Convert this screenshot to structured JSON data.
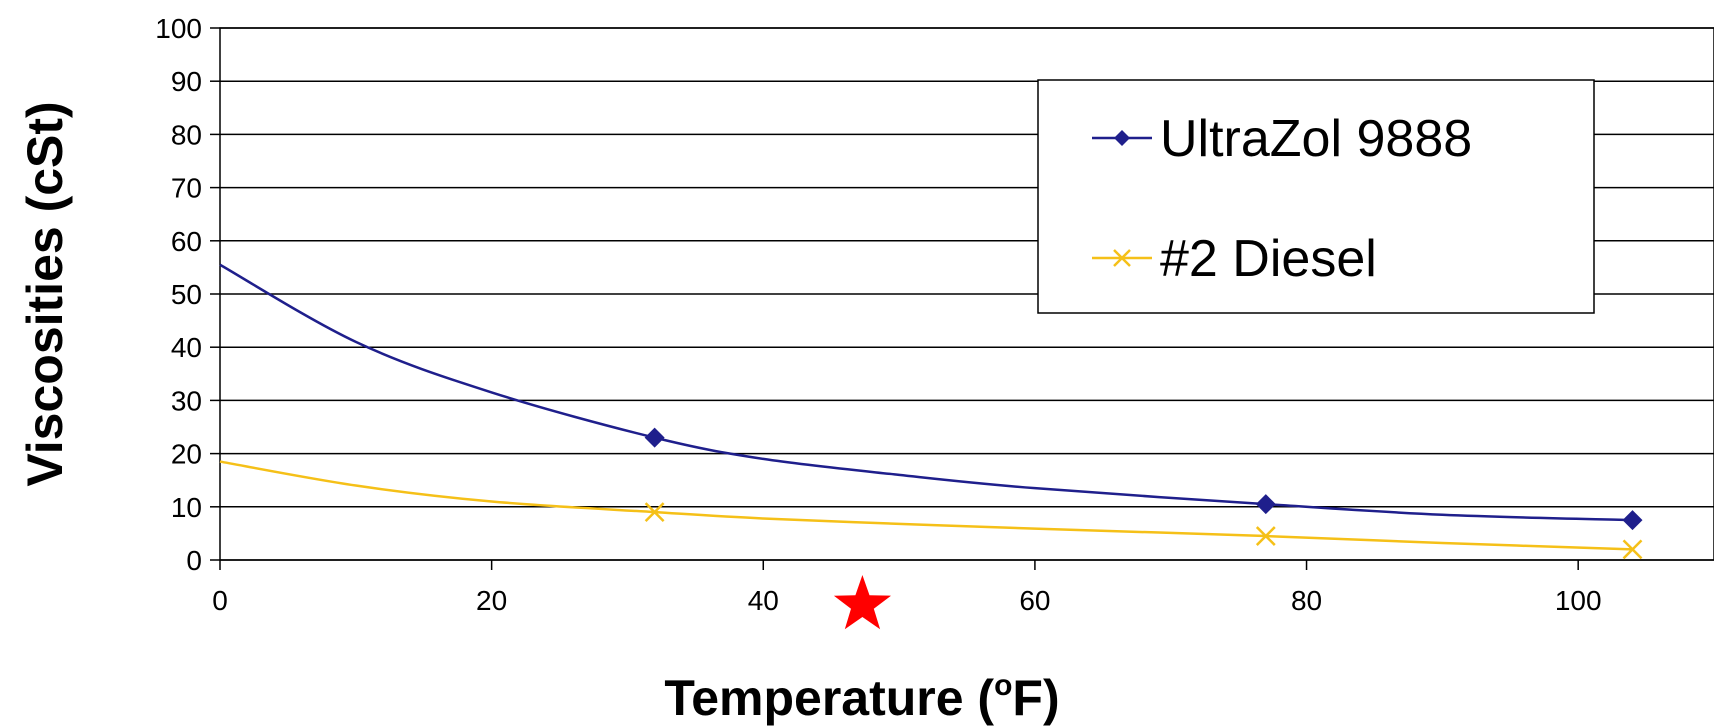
{
  "chart_data": {
    "type": "line",
    "title": "",
    "xlabel": "Temperature (oF)",
    "xlabel_main": "Temperature (",
    "xlabel_sup": "o",
    "xlabel_end": "F)",
    "ylabel": "Viscosities (cSt)",
    "xlim": [
      0,
      110
    ],
    "ylim": [
      0,
      100
    ],
    "x_ticks": [
      "0",
      "20",
      "40",
      "60",
      "80",
      "100"
    ],
    "y_ticks": [
      "0",
      "10",
      "20",
      "30",
      "40",
      "50",
      "60",
      "70",
      "80",
      "90",
      "100"
    ],
    "grid": "horizontal",
    "legend_position": "top-right",
    "series": [
      {
        "name": "UltraZol 9888",
        "color": "#1f1f8c",
        "marker": "diamond",
        "points": [
          [
            32,
            23
          ],
          [
            77,
            10.5
          ],
          [
            104,
            7.5
          ]
        ],
        "trend": [
          [
            0,
            55.5
          ],
          [
            10,
            41
          ],
          [
            20,
            31.5
          ],
          [
            32,
            23
          ],
          [
            40,
            19
          ],
          [
            50,
            16
          ],
          [
            60,
            13.5
          ],
          [
            77,
            10.5
          ],
          [
            90,
            8.5
          ],
          [
            104,
            7.5
          ]
        ]
      },
      {
        "name": "#2 Diesel",
        "color": "#f5c018",
        "marker": "x",
        "points": [
          [
            32,
            9
          ],
          [
            77,
            4.5
          ],
          [
            104,
            2
          ]
        ],
        "trend": [
          [
            0,
            18.5
          ],
          [
            10,
            14
          ],
          [
            20,
            11
          ],
          [
            32,
            9
          ],
          [
            40,
            7.8
          ],
          [
            50,
            6.8
          ],
          [
            60,
            5.9
          ],
          [
            77,
            4.5
          ],
          [
            90,
            3.2
          ],
          [
            104,
            2
          ]
        ]
      }
    ],
    "annotation": {
      "type": "star",
      "x": 47.3,
      "color": "#ff0000"
    }
  }
}
